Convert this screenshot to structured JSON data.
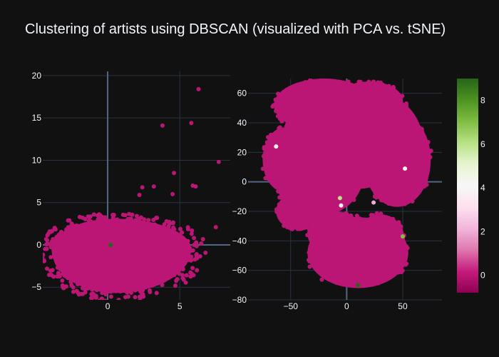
{
  "chart_data": [
    {
      "type": "scatter",
      "title": "Clustering of artists using DBSCAN (visualized with PCA vs. tSNE)",
      "subplot": "PCA",
      "xlim": [
        -4.5,
        8.5
      ],
      "ylim": [
        -6.5,
        20.5
      ],
      "x_ticks": [
        0,
        5
      ],
      "y_ticks": [
        -5,
        0,
        5,
        10,
        15,
        20
      ],
      "grid": true,
      "bulk": {
        "description_cluster_label": 0,
        "x_range": [
          -4,
          6
        ],
        "y_range": [
          -6.5,
          5
        ],
        "center": [
          0.5,
          -0.5
        ]
      },
      "points": [
        {
          "x": 6.3,
          "y": 18.4,
          "label": 0
        },
        {
          "x": 3.8,
          "y": 14.1,
          "label": 0
        },
        {
          "x": 5.8,
          "y": 14.4,
          "label": 0
        },
        {
          "x": 7.7,
          "y": 9.8,
          "label": 0
        },
        {
          "x": 4.6,
          "y": 8.5,
          "label": 0
        },
        {
          "x": 5.9,
          "y": 7.0,
          "label": 0
        },
        {
          "x": 6.1,
          "y": 6.9,
          "label": 0
        },
        {
          "x": 2.4,
          "y": 6.8,
          "label": 0
        },
        {
          "x": 3.2,
          "y": 6.9,
          "label": 0
        },
        {
          "x": 4.5,
          "y": 6.0,
          "label": 0
        },
        {
          "x": 2.2,
          "y": 5.9,
          "label": 0
        },
        {
          "x": 7.5,
          "y": 2.1,
          "label": 0
        },
        {
          "x": 0.2,
          "y": 0.0,
          "label": 9
        }
      ]
    },
    {
      "type": "scatter",
      "subplot": "tSNE",
      "xlim": [
        -88,
        85
      ],
      "ylim": [
        -80,
        70
      ],
      "x_ticks": [
        -50,
        0,
        50
      ],
      "y_ticks": [
        -80,
        -60,
        -40,
        -20,
        0,
        20,
        40,
        60
      ],
      "grid": true,
      "points": [
        {
          "x": -63,
          "y": 24,
          "label": 4
        },
        {
          "x": 52,
          "y": 9,
          "label": 4
        },
        {
          "x": 24,
          "y": -14,
          "label": 2
        },
        {
          "x": -6,
          "y": -11,
          "label": 6
        },
        {
          "x": -5,
          "y": -16,
          "label": 4
        },
        {
          "x": 50,
          "y": -37,
          "label": 7
        },
        {
          "x": 10,
          "y": -70,
          "label": 9
        }
      ]
    }
  ],
  "colorbar": {
    "min": -0.8,
    "max": 9,
    "ticks": [
      0,
      2,
      4,
      6,
      8
    ],
    "colors": [
      "#8e0152",
      "#c51b7d",
      "#de77ae",
      "#f1b6da",
      "#fde0ef",
      "#f7f7f7",
      "#e6f5d0",
      "#b8e186",
      "#7fbc41",
      "#4d9221",
      "#276419"
    ]
  }
}
